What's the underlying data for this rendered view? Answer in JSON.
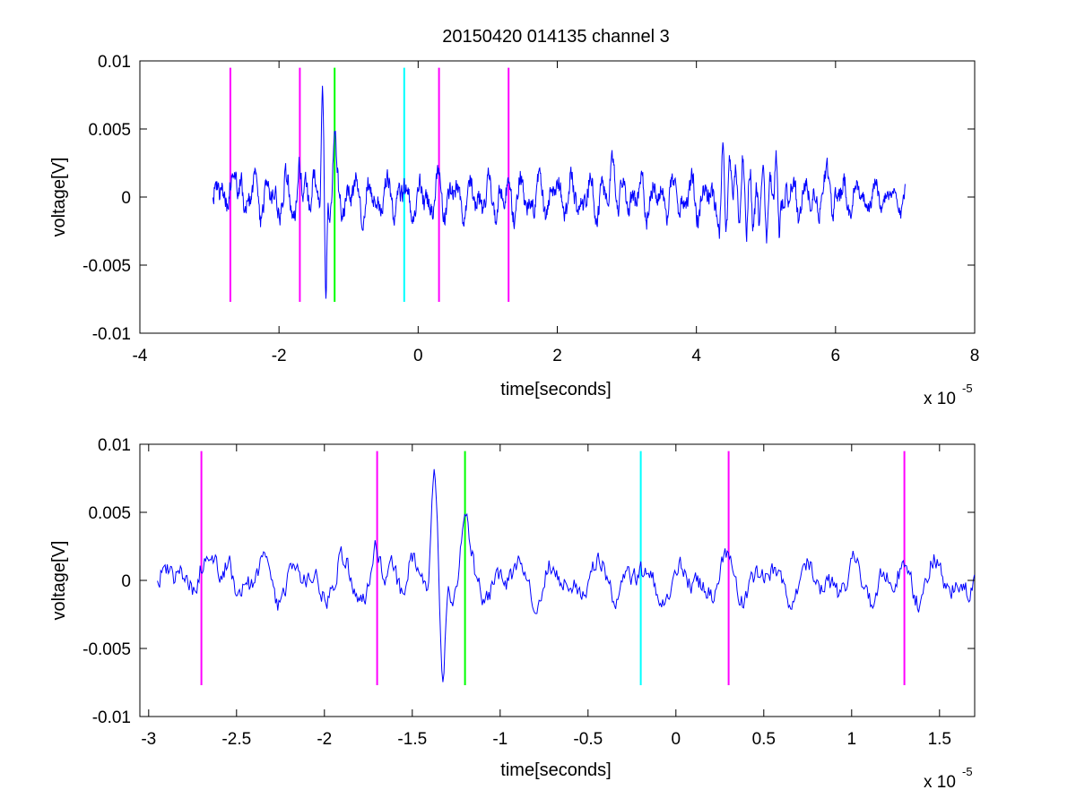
{
  "figure_title": "20150420 014135 channel 3",
  "colors": {
    "signal": "#0000ff",
    "marker_magenta": "#ff00ff",
    "marker_green": "#00ff00",
    "marker_cyan": "#00ffff",
    "axes": "#000000"
  },
  "chart_data": [
    {
      "type": "line",
      "title": "20150420 014135 channel 3",
      "xlabel": "time[seconds]",
      "ylabel": "voltage[V]",
      "x_exponent_base": "x 10",
      "x_exponent_power": "-5",
      "xlim": [
        -4e-05,
        8e-05
      ],
      "ylim": [
        -0.01,
        0.01
      ],
      "xticks": [
        -4e-05,
        -2e-05,
        0,
        2e-05,
        4e-05,
        6e-05,
        8e-05
      ],
      "xtick_labels": [
        "-4",
        "-2",
        "0",
        "2",
        "4",
        "6",
        "8"
      ],
      "yticks": [
        0.01,
        0.005,
        0,
        -0.005,
        -0.01
      ],
      "ytick_labels": [
        "0.01",
        "0.005",
        "0",
        "-0.005",
        "-0.01"
      ],
      "grid": false,
      "signal": {
        "x_start": -2.95e-05,
        "x_end": 7e-05,
        "color": "#0000ff"
      },
      "markers": [
        {
          "x": -2.7e-05,
          "color": "#ff00ff",
          "y_range": [
            -0.0077,
            0.0095
          ]
        },
        {
          "x": -1.7e-05,
          "color": "#ff00ff",
          "y_range": [
            -0.0077,
            0.0095
          ]
        },
        {
          "x": -1.2e-05,
          "color": "#00ff00",
          "y_range": [
            -0.0077,
            0.0095
          ]
        },
        {
          "x": -2e-06,
          "color": "#00ffff",
          "y_range": [
            -0.0077,
            0.0095
          ]
        },
        {
          "x": 3e-06,
          "color": "#ff00ff",
          "y_range": [
            -0.0077,
            0.0095
          ]
        },
        {
          "x": 1.3e-05,
          "color": "#ff00ff",
          "y_range": [
            -0.0077,
            0.0095
          ]
        }
      ]
    },
    {
      "type": "line",
      "title": "",
      "xlabel": "time[seconds]",
      "ylabel": "voltage[V]",
      "x_exponent_base": "x 10",
      "x_exponent_power": "-5",
      "xlim": [
        -3.05e-05,
        1.7e-05
      ],
      "ylim": [
        -0.01,
        0.01
      ],
      "xticks": [
        -3e-05,
        -2.5e-05,
        -2e-05,
        -1.5e-05,
        -1e-05,
        -5e-06,
        0,
        5e-06,
        1e-05,
        1.5e-05
      ],
      "xtick_labels": [
        "-3",
        "-2.5",
        "-2",
        "-1.5",
        "-1",
        "-0.5",
        "0",
        "0.5",
        "1",
        "1.5"
      ],
      "yticks": [
        0.01,
        0.005,
        0,
        -0.005,
        -0.01
      ],
      "ytick_labels": [
        "0.01",
        "0.005",
        "0",
        "-0.005",
        "-0.01"
      ],
      "grid": false,
      "signal": {
        "x_start": -2.95e-05,
        "x_end": 1.7e-05,
        "color": "#0000ff"
      },
      "markers": [
        {
          "x": -2.7e-05,
          "color": "#ff00ff",
          "y_range": [
            -0.0077,
            0.0095
          ]
        },
        {
          "x": -1.7e-05,
          "color": "#ff00ff",
          "y_range": [
            -0.0077,
            0.0095
          ]
        },
        {
          "x": -1.2e-05,
          "color": "#00ff00",
          "y_range": [
            -0.0077,
            0.0095
          ]
        },
        {
          "x": -2e-06,
          "color": "#00ffff",
          "y_range": [
            -0.0077,
            0.0095
          ]
        },
        {
          "x": 3e-06,
          "color": "#ff00ff",
          "y_range": [
            -0.0077,
            0.0095
          ]
        },
        {
          "x": 1.3e-05,
          "color": "#ff00ff",
          "y_range": [
            -0.0077,
            0.0095
          ]
        }
      ]
    }
  ]
}
